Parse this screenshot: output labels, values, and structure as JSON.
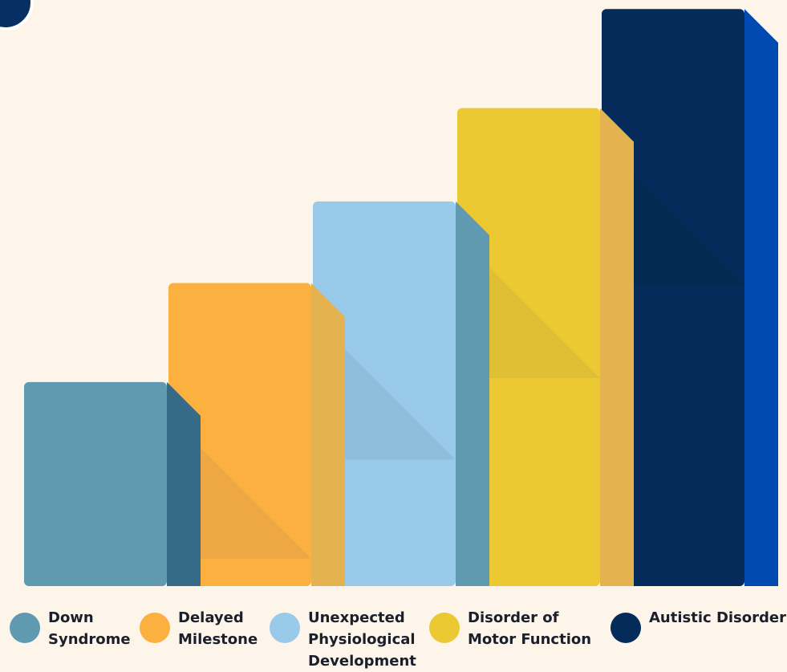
{
  "chart_data": {
    "type": "bar",
    "categories": [
      "Down Syndrome",
      "Delayed Milestone",
      "Unexpected Physiological Development",
      "Disorder of Motor Function",
      "Autistic Disorder"
    ],
    "values": [
      35,
      52,
      66,
      82,
      99
    ],
    "ylim": [
      0,
      100
    ],
    "grid": false,
    "legend_position": "bottom",
    "legend": [
      {
        "label": "Down\nSyndrome",
        "color": "#5f9ab1"
      },
      {
        "label": "Delayed\nMilestone",
        "color": "#fbb040"
      },
      {
        "label": "Unexpected\nPhysiological\nDevelopment",
        "color": "#99caea"
      },
      {
        "label": "Disorder of\nMotor Function",
        "color": "#ecc932"
      },
      {
        "label": "Autistic Disorder",
        "color": "#052b5a"
      }
    ],
    "colors": {
      "front": [
        "#5f9ab1",
        "#fbb040",
        "#99caea",
        "#ecc932",
        "#052b5a"
      ],
      "side": [
        "#356b87",
        "#e4b24e",
        "#5f9ab1",
        "#e4b24e",
        "#014ab0"
      ],
      "shadow": [
        "#5f9ab1",
        "#eda745",
        "#8fbedd",
        "#dfbf33",
        "#032b52"
      ]
    }
  }
}
